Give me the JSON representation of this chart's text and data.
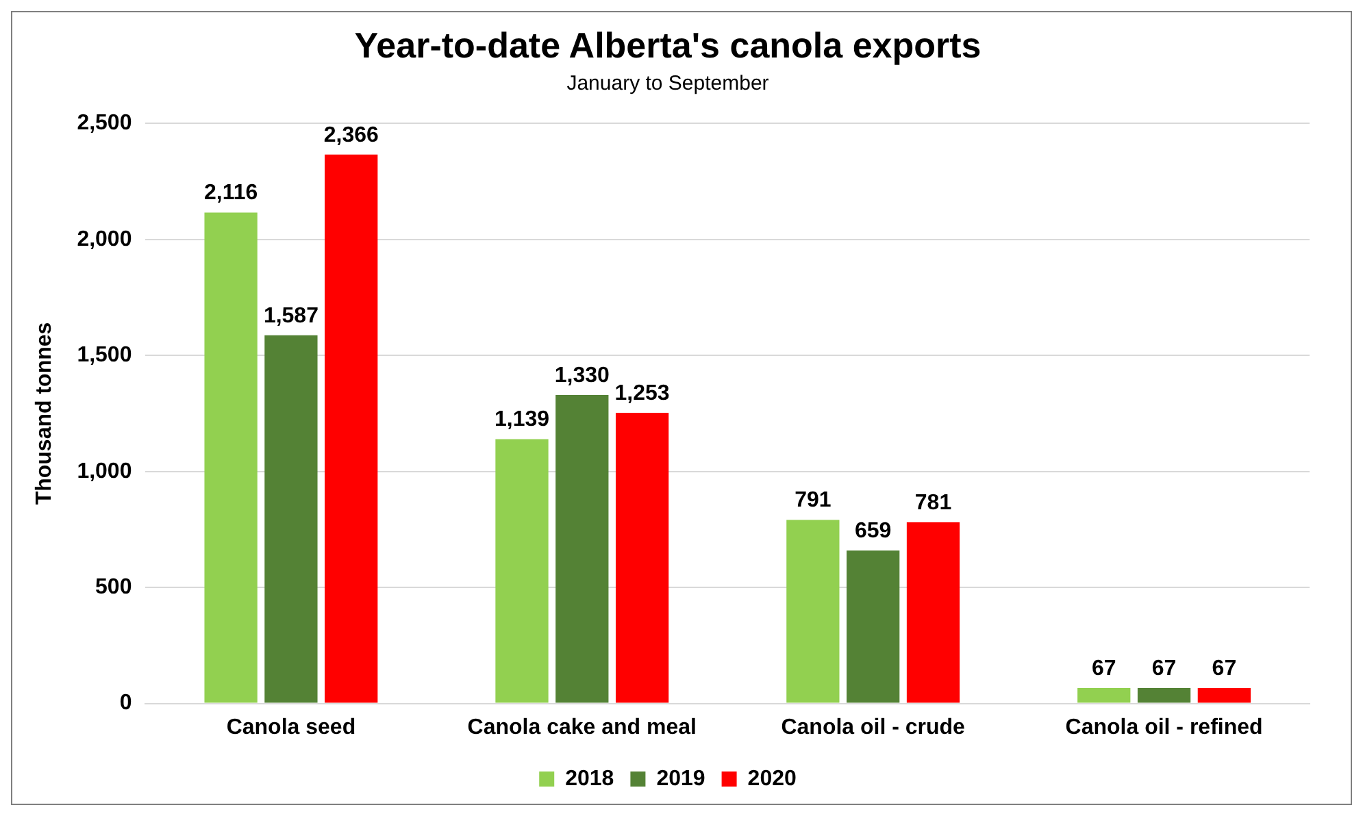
{
  "chart_data": {
    "type": "bar",
    "title": "Year-to-date Alberta's canola exports",
    "subtitle": "January to September",
    "ylabel": "Thousand tonnes",
    "categories": [
      "Canola seed",
      "Canola cake and meal",
      "Canola oil - crude",
      "Canola oil - refined"
    ],
    "series": [
      {
        "name": "2018",
        "color": "#92d050",
        "values": [
          2116,
          1139,
          791,
          67
        ],
        "value_labels": [
          "2,116",
          "1,139",
          "791",
          "67"
        ]
      },
      {
        "name": "2019",
        "color": "#548235",
        "values": [
          1587,
          1330,
          659,
          67
        ],
        "value_labels": [
          "1,587",
          "1,330",
          "659",
          "67"
        ]
      },
      {
        "name": "2020",
        "color": "#ff0000",
        "values": [
          2366,
          1253,
          781,
          67
        ],
        "value_labels": [
          "2,366",
          "1,253",
          "781",
          "67"
        ]
      }
    ],
    "ylim": [
      0,
      2500
    ],
    "yticks": [
      {
        "value": 0,
        "label": "0"
      },
      {
        "value": 500,
        "label": "500"
      },
      {
        "value": 1000,
        "label": "1,000"
      },
      {
        "value": 1500,
        "label": "1,500"
      },
      {
        "value": 2000,
        "label": "2,000"
      },
      {
        "value": 2500,
        "label": "2,500"
      }
    ],
    "grid": "y",
    "legend": "bottom"
  }
}
